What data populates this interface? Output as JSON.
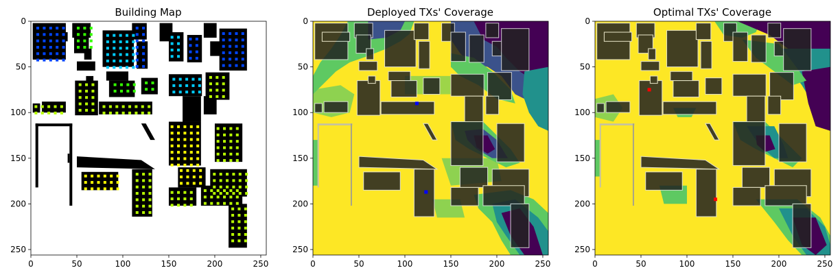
{
  "figure": {
    "panels": [
      {
        "title": "Building Map"
      },
      {
        "title": "Deployed TXs' Coverage"
      },
      {
        "title": "Optimal TXs' Coverage"
      }
    ]
  },
  "chart_data": [
    {
      "type": "heatmap",
      "title": "Building Map",
      "xlim": [
        0,
        256
      ],
      "ylim": [
        0,
        256
      ],
      "xticks": [
        0,
        50,
        100,
        150,
        200,
        250
      ],
      "yticks": [
        0,
        50,
        100,
        150,
        200,
        250
      ],
      "grid": false,
      "colors": {
        "building": "#000000",
        "background": "#ffffff",
        "marker_palette": [
          "#0044ff",
          "#00ccff",
          "#33ff00",
          "#b8ff00",
          "#ffff00"
        ]
      }
    },
    {
      "type": "heatmap",
      "title": "Deployed TXs' Coverage",
      "xlim": [
        0,
        256
      ],
      "ylim": [
        0,
        256
      ],
      "xticks": [
        0,
        50,
        100,
        150,
        200,
        250
      ],
      "yticks": [
        0,
        50,
        100,
        150,
        200,
        250
      ],
      "grid": false,
      "colormap": "viridis",
      "transmitters": [
        {
          "x": 113,
          "y": 90
        },
        {
          "x": 123,
          "y": 187
        }
      ],
      "colors": {
        "tx": "#0000ff"
      }
    },
    {
      "type": "heatmap",
      "title": "Optimal TXs' Coverage",
      "xlim": [
        0,
        256
      ],
      "ylim": [
        0,
        256
      ],
      "xticks": [
        0,
        50,
        100,
        150,
        200,
        250
      ],
      "yticks": [
        0,
        50,
        100,
        150,
        200,
        250
      ],
      "grid": false,
      "colormap": "viridis",
      "transmitters": [
        {
          "x": 59,
          "y": 75
        },
        {
          "x": 131,
          "y": 195
        }
      ],
      "colors": {
        "tx": "#ff0000"
      }
    }
  ]
}
